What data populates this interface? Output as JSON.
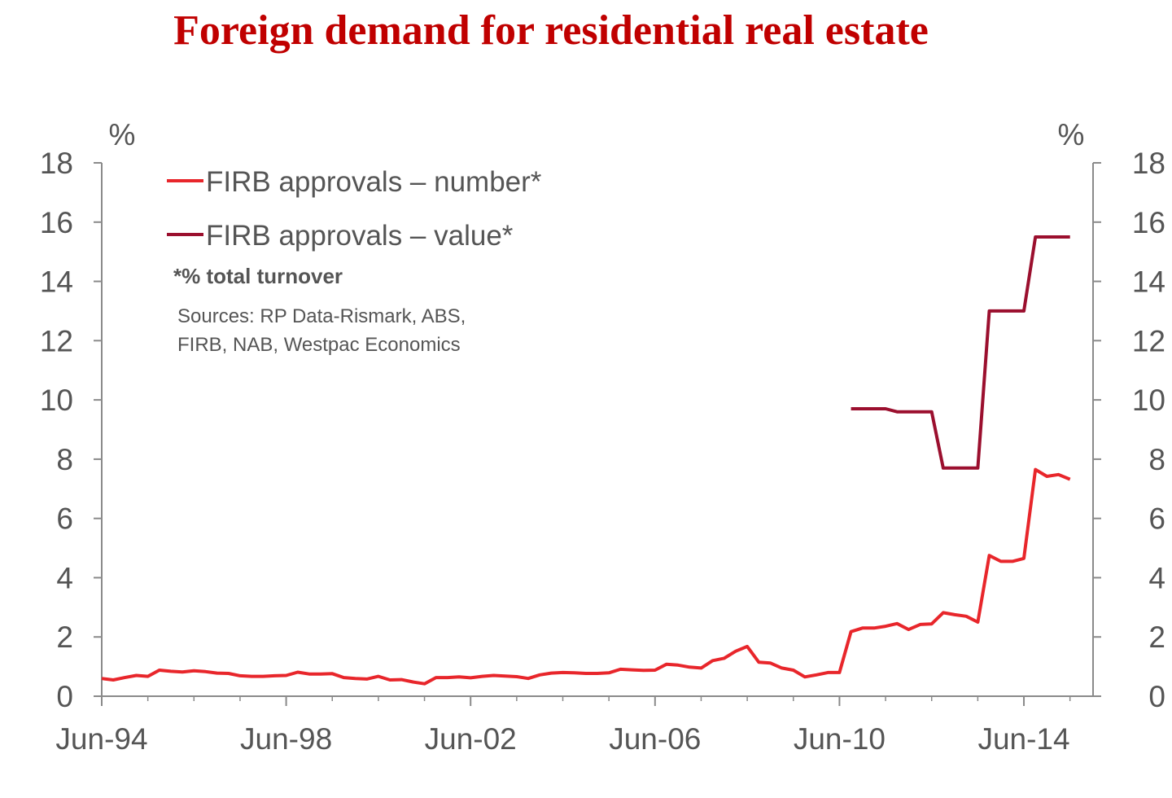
{
  "chart_data": {
    "type": "line",
    "title": "Foreign demand for residential real estate",
    "y_unit_left": "%",
    "y_unit_right": "%",
    "ylim": [
      0,
      18
    ],
    "yticks": [
      "0",
      "2",
      "4",
      "6",
      "8",
      "10",
      "12",
      "14",
      "16",
      "18"
    ],
    "xticks": [
      "Jun-94",
      "Jun-98",
      "Jun-02",
      "Jun-06",
      "Jun-10",
      "Jun-14"
    ],
    "note": "*% total turnover",
    "sources": [
      "Sources: RP Data-Rismark, ABS,",
      "FIRB, NAB, Westpac Economics"
    ],
    "grid": false,
    "legend_position": "top-left",
    "series": [
      {
        "name": "FIRB approvals – number*",
        "color": "#e8262b",
        "points": [
          [
            1994.5,
            0.6
          ],
          [
            1994.75,
            0.55
          ],
          [
            1995.0,
            0.63
          ],
          [
            1995.25,
            0.7
          ],
          [
            1995.5,
            0.67
          ],
          [
            1995.75,
            0.88
          ],
          [
            1996.0,
            0.84
          ],
          [
            1996.25,
            0.82
          ],
          [
            1996.5,
            0.86
          ],
          [
            1996.75,
            0.83
          ],
          [
            1997.0,
            0.78
          ],
          [
            1997.25,
            0.77
          ],
          [
            1997.5,
            0.69
          ],
          [
            1997.75,
            0.67
          ],
          [
            1998.0,
            0.67
          ],
          [
            1998.25,
            0.69
          ],
          [
            1998.5,
            0.7
          ],
          [
            1998.75,
            0.81
          ],
          [
            1999.0,
            0.75
          ],
          [
            1999.25,
            0.75
          ],
          [
            1999.5,
            0.76
          ],
          [
            1999.75,
            0.63
          ],
          [
            2000.0,
            0.6
          ],
          [
            2000.25,
            0.58
          ],
          [
            2000.5,
            0.67
          ],
          [
            2000.75,
            0.55
          ],
          [
            2001.0,
            0.56
          ],
          [
            2001.25,
            0.48
          ],
          [
            2001.5,
            0.42
          ],
          [
            2001.75,
            0.63
          ],
          [
            2002.0,
            0.63
          ],
          [
            2002.25,
            0.65
          ],
          [
            2002.5,
            0.62
          ],
          [
            2002.75,
            0.67
          ],
          [
            2003.0,
            0.7
          ],
          [
            2003.25,
            0.68
          ],
          [
            2003.5,
            0.66
          ],
          [
            2003.75,
            0.6
          ],
          [
            2004.0,
            0.72
          ],
          [
            2004.25,
            0.78
          ],
          [
            2004.5,
            0.8
          ],
          [
            2004.75,
            0.79
          ],
          [
            2005.0,
            0.77
          ],
          [
            2005.25,
            0.77
          ],
          [
            2005.5,
            0.79
          ],
          [
            2005.75,
            0.91
          ],
          [
            2006.0,
            0.89
          ],
          [
            2006.25,
            0.87
          ],
          [
            2006.5,
            0.88
          ],
          [
            2006.75,
            1.08
          ],
          [
            2007.0,
            1.05
          ],
          [
            2007.25,
            0.98
          ],
          [
            2007.5,
            0.95
          ],
          [
            2007.75,
            1.2
          ],
          [
            2008.0,
            1.28
          ],
          [
            2008.25,
            1.52
          ],
          [
            2008.5,
            1.68
          ],
          [
            2008.75,
            1.15
          ],
          [
            2009.0,
            1.12
          ],
          [
            2009.25,
            0.95
          ],
          [
            2009.5,
            0.88
          ],
          [
            2009.75,
            0.65
          ],
          [
            2010.0,
            0.72
          ],
          [
            2010.25,
            0.8
          ],
          [
            2010.5,
            0.8
          ],
          [
            2010.75,
            2.18
          ],
          [
            2011.0,
            2.3
          ],
          [
            2011.25,
            2.3
          ],
          [
            2011.5,
            2.36
          ],
          [
            2011.75,
            2.45
          ],
          [
            2012.0,
            2.25
          ],
          [
            2012.25,
            2.42
          ],
          [
            2012.5,
            2.44
          ],
          [
            2012.75,
            2.82
          ],
          [
            2013.0,
            2.75
          ],
          [
            2013.25,
            2.7
          ],
          [
            2013.5,
            2.5
          ],
          [
            2013.75,
            4.75
          ],
          [
            2014.0,
            4.55
          ],
          [
            2014.25,
            4.55
          ],
          [
            2014.5,
            4.65
          ],
          [
            2014.75,
            7.65
          ],
          [
            2015.0,
            7.42
          ],
          [
            2015.25,
            7.48
          ],
          [
            2015.5,
            7.32
          ]
        ]
      },
      {
        "name": "FIRB approvals – value*",
        "color": "#9b0f2e",
        "points": [
          [
            2010.75,
            9.7
          ],
          [
            2011.5,
            9.7
          ],
          [
            2011.75,
            9.6
          ],
          [
            2012.5,
            9.6
          ],
          [
            2012.75,
            7.7
          ],
          [
            2013.5,
            7.7
          ],
          [
            2013.75,
            13.0
          ],
          [
            2014.5,
            13.0
          ],
          [
            2014.75,
            15.5
          ],
          [
            2015.5,
            15.5
          ]
        ]
      }
    ]
  }
}
